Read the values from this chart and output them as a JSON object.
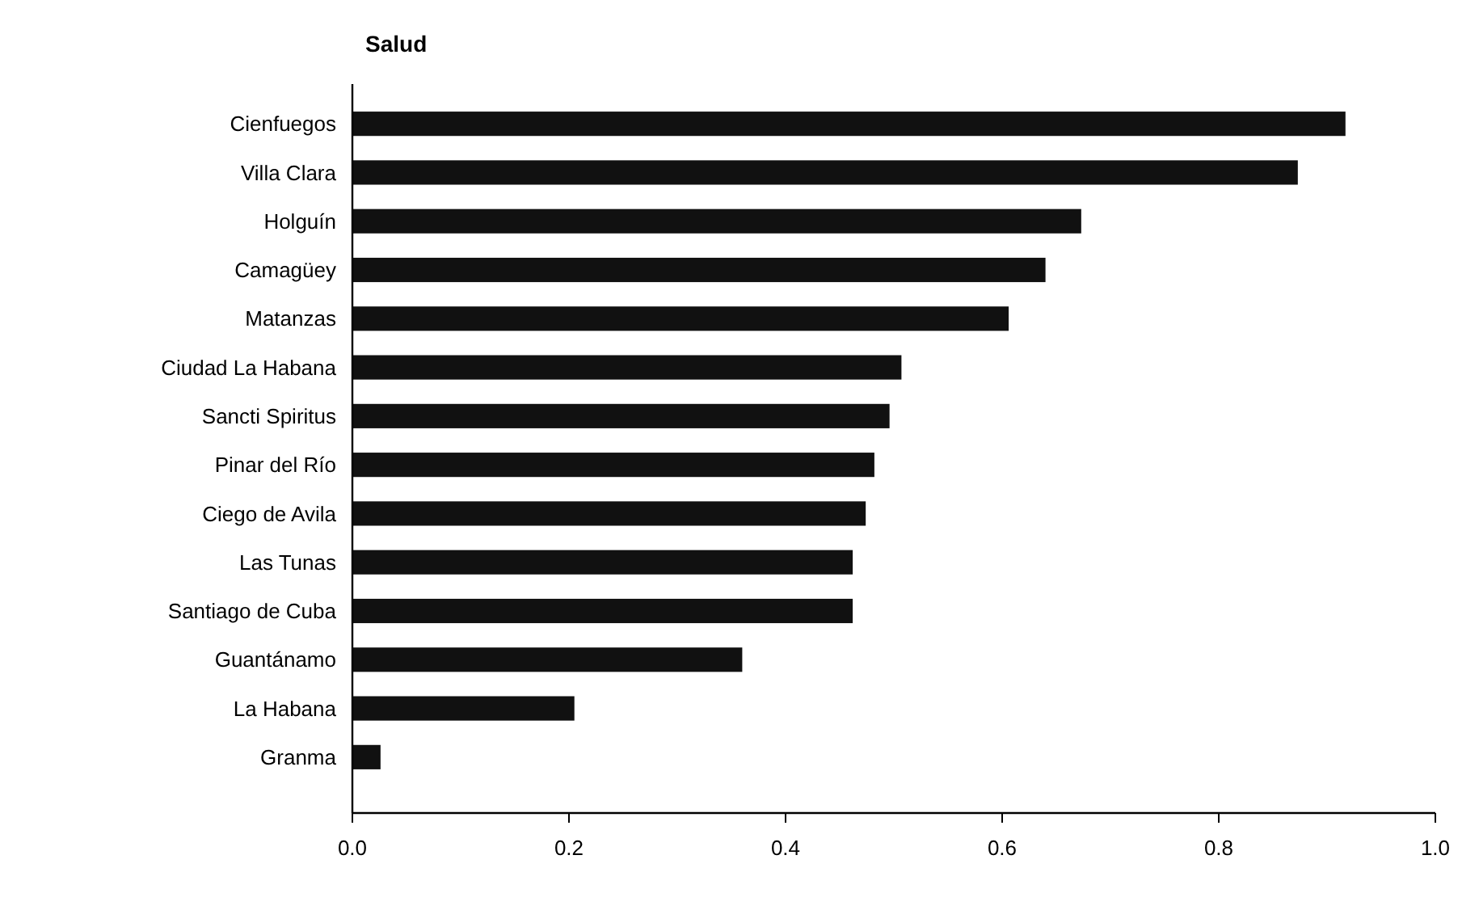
{
  "chart_data": {
    "type": "bar",
    "orientation": "horizontal",
    "title": "Salud",
    "categories": [
      "Cienfuegos",
      "Villa Clara",
      "Holguín",
      "Camagüey",
      "Matanzas",
      "Ciudad La Habana",
      "Sancti Spiritus",
      "Pinar del Río",
      "Ciego de Avila",
      "Las Tunas",
      "Santiago de Cuba",
      "Guantánamo",
      "La Habana",
      "Granma"
    ],
    "values": [
      0.917,
      0.873,
      0.673,
      0.64,
      0.606,
      0.507,
      0.496,
      0.482,
      0.474,
      0.462,
      0.462,
      0.36,
      0.205,
      0.026
    ],
    "color": "#111111",
    "xlim": [
      0,
      1
    ],
    "xticks": [
      {
        "value": 0,
        "label": "0.0"
      },
      0.2,
      0.4,
      0.6,
      0.8,
      {
        "value": 1,
        "label": "1.0"
      }
    ],
    "grid": false
  }
}
